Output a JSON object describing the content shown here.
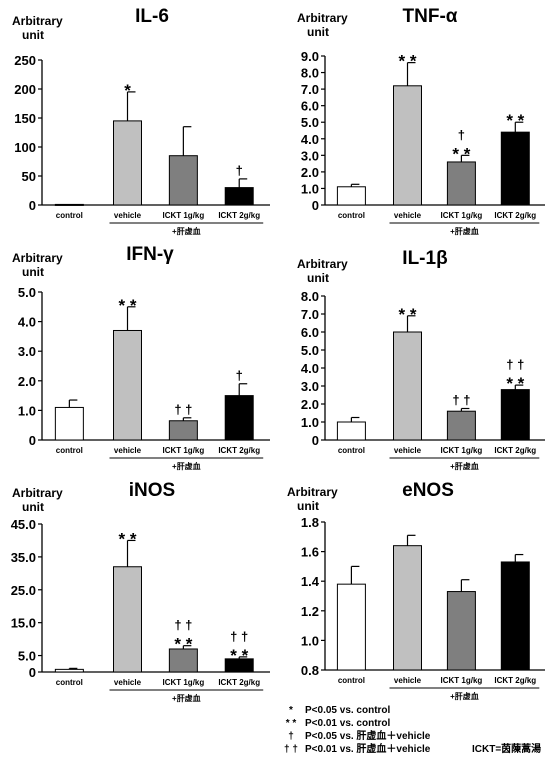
{
  "common": {
    "ylabel_line1": "Arbitrary",
    "ylabel_line2": "unit",
    "group_label": "+肝虚血",
    "categories": [
      "control",
      "vehicle",
      "ICKT 1g/kg",
      "ICKT 2g/kg"
    ],
    "bar_colors": [
      "#ffffff",
      "#c0c0c0",
      "#7f7f7f",
      "#000000"
    ]
  },
  "chart_data": [
    {
      "type": "bar",
      "title": "IL-6",
      "ylim": [
        0,
        250
      ],
      "yticks": [
        0,
        50,
        100,
        150,
        200,
        250
      ],
      "ytick_labels": [
        "0",
        "50",
        "100",
        "150",
        "200",
        "250"
      ],
      "categories": [
        "control",
        "vehicle",
        "ICKT 1g/kg",
        "ICKT 2g/kg"
      ],
      "values": [
        1,
        145,
        85,
        30
      ],
      "errors": [
        0,
        50,
        50,
        15
      ],
      "sig_labels": [
        "",
        "*",
        "",
        "†"
      ]
    },
    {
      "type": "bar",
      "title": "TNF-α",
      "ylim": [
        0,
        9
      ],
      "yticks": [
        0,
        1,
        2,
        3,
        4,
        5,
        6,
        7,
        8,
        9
      ],
      "ytick_labels": [
        "0",
        "1.0",
        "2.0",
        "3.0",
        "4.0",
        "5.0",
        "6.0",
        "7.0",
        "8.0",
        "9.0"
      ],
      "categories": [
        "control",
        "vehicle",
        "ICKT 1g/kg",
        "ICKT 2g/kg"
      ],
      "values": [
        1.1,
        7.2,
        2.6,
        4.4
      ],
      "errors": [
        0.15,
        1.4,
        0.4,
        0.6
      ],
      "sig_labels": [
        "",
        "**",
        "†\n**",
        "**"
      ]
    },
    {
      "type": "bar",
      "title": "IFN-γ",
      "ylim": [
        0,
        5
      ],
      "yticks": [
        0,
        1,
        2,
        3,
        4,
        5
      ],
      "ytick_labels": [
        "0",
        "1.0",
        "2.0",
        "3.0",
        "4.0",
        "5.0"
      ],
      "categories": [
        "control",
        "vehicle",
        "ICKT 1g/kg",
        "ICKT 2g/kg"
      ],
      "values": [
        1.1,
        3.7,
        0.65,
        1.5
      ],
      "errors": [
        0.25,
        0.8,
        0.1,
        0.4
      ],
      "sig_labels": [
        "",
        "**",
        "††",
        "†"
      ]
    },
    {
      "type": "bar",
      "title": "IL-1β",
      "ylim": [
        0,
        8
      ],
      "yticks": [
        0,
        1,
        2,
        3,
        4,
        5,
        6,
        7,
        8
      ],
      "ytick_labels": [
        "0",
        "1.0",
        "2.0",
        "3.0",
        "4.0",
        "5.0",
        "6.0",
        "7.0",
        "8.0"
      ],
      "categories": [
        "control",
        "vehicle",
        "ICKT 1g/kg",
        "ICKT 2g/kg"
      ],
      "values": [
        1.0,
        6.0,
        1.6,
        2.8
      ],
      "errors": [
        0.25,
        0.9,
        0.15,
        0.25
      ],
      "sig_labels": [
        "",
        "**",
        "††",
        "††\n**"
      ]
    },
    {
      "type": "bar",
      "title": "iNOS",
      "ylim": [
        0,
        45
      ],
      "yticks": [
        0,
        5,
        15,
        25,
        35,
        45
      ],
      "ytick_labels": [
        "0",
        "5.0",
        "15.0",
        "25.0",
        "35.0",
        "45.0"
      ],
      "categories": [
        "control",
        "vehicle",
        "ICKT 1g/kg",
        "ICKT 2g/kg"
      ],
      "values": [
        0.8,
        32,
        7,
        4
      ],
      "errors": [
        0.3,
        8,
        1.0,
        0.6
      ],
      "sig_labels": [
        "",
        "**",
        "††\n**",
        "††\n**"
      ]
    },
    {
      "type": "bar",
      "title": "eNOS",
      "ylim": [
        0.8,
        1.8
      ],
      "yticks": [
        0.8,
        1.0,
        1.2,
        1.4,
        1.6,
        1.8
      ],
      "ytick_labels": [
        "0.8",
        "1.0",
        "1.2",
        "1.4",
        "1.6",
        "1.8"
      ],
      "categories": [
        "control",
        "vehicle",
        "ICKT 1g/kg",
        "ICKT 2g/kg"
      ],
      "values": [
        1.38,
        1.64,
        1.33,
        1.53
      ],
      "errors": [
        0.12,
        0.07,
        0.08,
        0.05
      ],
      "sig_labels": [
        "",
        "",
        "",
        ""
      ]
    }
  ],
  "legend": [
    {
      "symbol": "*",
      "text": "P<0.05 vs. control"
    },
    {
      "symbol": "* *",
      "text": "P<0.01 vs. control"
    },
    {
      "symbol": "†",
      "text": "P<0.05 vs. 肝虚血＋vehicle"
    },
    {
      "symbol": "† †",
      "text": "P<0.01 vs. 肝虚血＋vehicle"
    }
  ],
  "footnote": "ICKT=茵蔯蒿湯"
}
